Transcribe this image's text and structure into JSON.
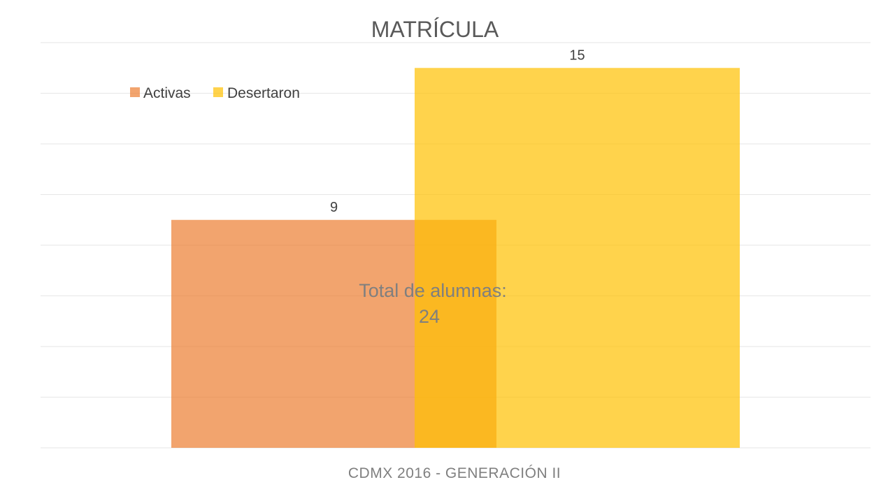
{
  "chart_data": {
    "type": "bar",
    "title": "MATRÍCULA",
    "xlabel": "CDMX 2016 - GENERACIÓN II",
    "ylabel": "",
    "ylim": [
      0,
      16
    ],
    "grid": true,
    "legend_position": "top-left",
    "series": [
      {
        "name": "Activas",
        "values": [
          9
        ],
        "label": "9",
        "color": "#ED7D31"
      },
      {
        "name": "Desertaron",
        "values": [
          15
        ],
        "label": "15",
        "color": "#FFC000"
      }
    ],
    "annotation": {
      "line1": "Total de alumnas:",
      "line2": "24"
    }
  }
}
